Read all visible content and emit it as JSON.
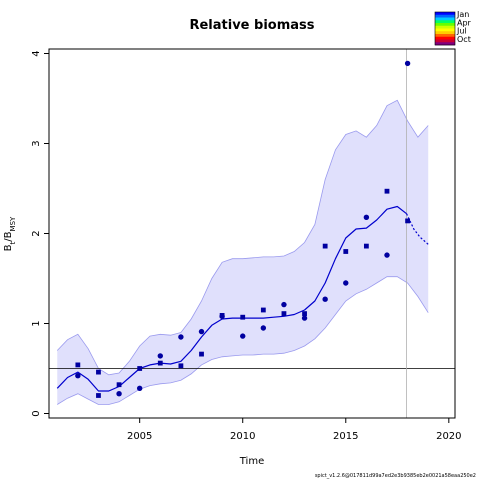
{
  "chart_data": {
    "type": "line",
    "title": "Relative biomass",
    "xlabel": "Time",
    "ylabel": "B_t / B_MSY",
    "ylabel_parts": {
      "main": "B",
      "sub1": "t",
      "sep": "/B",
      "sub2": "MSY"
    },
    "xlim": [
      2000.6,
      2020.3
    ],
    "ylim": [
      -0.05,
      4.05
    ],
    "x_ticks": [
      2005,
      2010,
      2015,
      2020
    ],
    "y_ticks": [
      0,
      1,
      2,
      3,
      4
    ],
    "x_tick_labels": [
      "2005",
      "2010",
      "2015",
      "2020"
    ],
    "y_tick_labels": [
      "0",
      "1",
      "2",
      "3",
      "4"
    ],
    "reference_line_y": 0.5,
    "vertical_line_x": 2017.95,
    "series": [
      {
        "kind": "estimate",
        "color": "#0000cd",
        "x": [
          2001.0,
          2001.5,
          2002.0,
          2002.5,
          2003.0,
          2003.5,
          2004.0,
          2004.5,
          2005.0,
          2005.5,
          2006.0,
          2006.5,
          2007.0,
          2007.5,
          2008.0,
          2008.5,
          2009.0,
          2009.5,
          2010.0,
          2010.5,
          2011.0,
          2011.5,
          2012.0,
          2012.5,
          2013.0,
          2013.5,
          2014.0,
          2014.5,
          2015.0,
          2015.5,
          2016.0,
          2016.5,
          2017.0,
          2017.5,
          2017.95
        ],
        "y": [
          0.28,
          0.4,
          0.46,
          0.38,
          0.25,
          0.25,
          0.3,
          0.4,
          0.5,
          0.54,
          0.56,
          0.55,
          0.58,
          0.7,
          0.85,
          0.98,
          1.05,
          1.06,
          1.06,
          1.06,
          1.06,
          1.07,
          1.08,
          1.1,
          1.15,
          1.25,
          1.45,
          1.72,
          1.95,
          2.05,
          2.06,
          2.15,
          2.27,
          2.3,
          2.22
        ]
      },
      {
        "kind": "forecast",
        "color": "#0000cd",
        "x": [
          2017.95,
          2018.3,
          2018.6,
          2019.0
        ],
        "y": [
          2.22,
          2.05,
          1.96,
          1.88
        ]
      }
    ],
    "confidence_band": {
      "color": "#e0e0fc",
      "edge_color": "#9a9aee",
      "x": [
        2001.0,
        2001.5,
        2002.0,
        2002.5,
        2003.0,
        2003.5,
        2004.0,
        2004.5,
        2005.0,
        2005.5,
        2006.0,
        2006.5,
        2007.0,
        2007.5,
        2008.0,
        2008.5,
        2009.0,
        2009.5,
        2010.0,
        2010.5,
        2011.0,
        2011.5,
        2012.0,
        2012.5,
        2013.0,
        2013.5,
        2014.0,
        2014.5,
        2015.0,
        2015.5,
        2016.0,
        2016.5,
        2017.0,
        2017.5,
        2018.0,
        2018.5,
        2019.0
      ],
      "lower": [
        0.1,
        0.17,
        0.22,
        0.16,
        0.1,
        0.1,
        0.13,
        0.2,
        0.27,
        0.31,
        0.33,
        0.34,
        0.37,
        0.44,
        0.54,
        0.6,
        0.63,
        0.64,
        0.65,
        0.65,
        0.66,
        0.66,
        0.67,
        0.7,
        0.75,
        0.83,
        0.95,
        1.1,
        1.25,
        1.33,
        1.38,
        1.45,
        1.52,
        1.52,
        1.45,
        1.3,
        1.12
      ],
      "upper": [
        0.7,
        0.82,
        0.88,
        0.72,
        0.5,
        0.43,
        0.45,
        0.58,
        0.75,
        0.86,
        0.88,
        0.87,
        0.9,
        1.05,
        1.25,
        1.5,
        1.68,
        1.72,
        1.72,
        1.73,
        1.74,
        1.74,
        1.75,
        1.8,
        1.9,
        2.1,
        2.6,
        2.93,
        3.1,
        3.14,
        3.07,
        3.2,
        3.42,
        3.48,
        3.25,
        3.07,
        3.2
      ]
    },
    "observations": [
      {
        "x": 2002.0,
        "y": 0.54,
        "shape": "square"
      },
      {
        "x": 2002.0,
        "y": 0.42,
        "shape": "circle"
      },
      {
        "x": 2003.0,
        "y": 0.46,
        "shape": "square"
      },
      {
        "x": 2003.0,
        "y": 0.2,
        "shape": "square"
      },
      {
        "x": 2004.0,
        "y": 0.32,
        "shape": "square"
      },
      {
        "x": 2004.0,
        "y": 0.22,
        "shape": "circle"
      },
      {
        "x": 2005.0,
        "y": 0.5,
        "shape": "square"
      },
      {
        "x": 2005.0,
        "y": 0.28,
        "shape": "circle"
      },
      {
        "x": 2006.0,
        "y": 0.64,
        "shape": "circle"
      },
      {
        "x": 2006.0,
        "y": 0.56,
        "shape": "square"
      },
      {
        "x": 2007.0,
        "y": 0.85,
        "shape": "circle"
      },
      {
        "x": 2007.0,
        "y": 0.53,
        "shape": "square"
      },
      {
        "x": 2008.0,
        "y": 0.91,
        "shape": "circle"
      },
      {
        "x": 2008.0,
        "y": 0.66,
        "shape": "square"
      },
      {
        "x": 2009.0,
        "y": 1.09,
        "shape": "square"
      },
      {
        "x": 2009.0,
        "y": 1.08,
        "shape": "circle"
      },
      {
        "x": 2010.0,
        "y": 1.07,
        "shape": "square"
      },
      {
        "x": 2010.0,
        "y": 0.86,
        "shape": "circle"
      },
      {
        "x": 2011.0,
        "y": 1.15,
        "shape": "square"
      },
      {
        "x": 2011.0,
        "y": 0.95,
        "shape": "circle"
      },
      {
        "x": 2012.0,
        "y": 1.21,
        "shape": "circle"
      },
      {
        "x": 2012.0,
        "y": 1.11,
        "shape": "square"
      },
      {
        "x": 2013.0,
        "y": 1.11,
        "shape": "square"
      },
      {
        "x": 2013.0,
        "y": 1.06,
        "shape": "circle"
      },
      {
        "x": 2014.0,
        "y": 1.86,
        "shape": "square"
      },
      {
        "x": 2014.0,
        "y": 1.27,
        "shape": "circle"
      },
      {
        "x": 2015.0,
        "y": 1.8,
        "shape": "square"
      },
      {
        "x": 2015.0,
        "y": 1.45,
        "shape": "circle"
      },
      {
        "x": 2016.0,
        "y": 2.18,
        "shape": "circle"
      },
      {
        "x": 2016.0,
        "y": 1.86,
        "shape": "square"
      },
      {
        "x": 2017.0,
        "y": 2.47,
        "shape": "square"
      },
      {
        "x": 2017.0,
        "y": 1.76,
        "shape": "circle"
      },
      {
        "x": 2018.0,
        "y": 3.89,
        "shape": "circle"
      },
      {
        "x": 2018.0,
        "y": 2.14,
        "shape": "square"
      }
    ],
    "observation_color": "#0000a0",
    "legend": {
      "placement": "top-right",
      "labels": [
        "Jan",
        "Apr",
        "Jul",
        "Oct"
      ],
      "colors": [
        "#0000ff",
        "#0066ff",
        "#00ccff",
        "#00ff66",
        "#66ff00",
        "#ccff00",
        "#ffff00",
        "#ffcc00",
        "#ff6600",
        "#ff0000",
        "#cc0033",
        "#800080"
      ]
    }
  },
  "footer": "spict_v1.2.6@017811d99a7ed2e3b9385eb2e0021a58eaa250e2"
}
